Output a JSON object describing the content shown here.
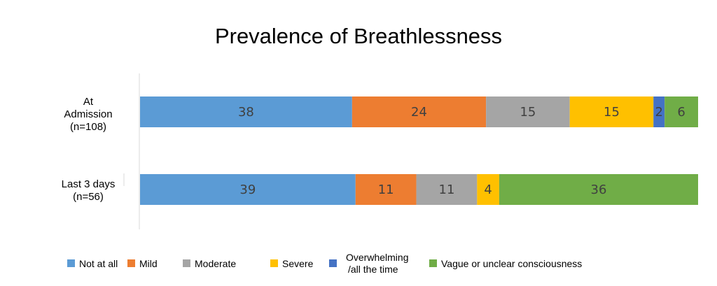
{
  "chart_data": {
    "type": "bar",
    "orientation": "horizontal",
    "stacked": true,
    "normalized": true,
    "title": "Prevalence of Breathlessness",
    "categories": [
      {
        "lines": [
          "At",
          "Admission",
          "(n=108)"
        ]
      },
      {
        "lines": [
          "Last 3 days",
          "(n=56)"
        ]
      }
    ],
    "series": [
      {
        "name": "Not at all",
        "color": "#5B9BD5",
        "values": [
          38,
          39
        ]
      },
      {
        "name": "Mild",
        "color": "#ED7D31",
        "values": [
          24,
          11
        ]
      },
      {
        "name": "Moderate",
        "color": "#A5A5A5",
        "values": [
          15,
          11
        ]
      },
      {
        "name": "Severe",
        "color": "#FFC000",
        "values": [
          15,
          4
        ]
      },
      {
        "name": "Overwhelming /all the time",
        "legend_lines": [
          "Overwhelming",
          "/all the time"
        ],
        "color": "#4472C4",
        "values": [
          2,
          0
        ]
      },
      {
        "name": "Vague or unclear consciousness",
        "color": "#70AD47",
        "values": [
          6,
          36
        ]
      }
    ],
    "grid": false,
    "legend_position": "bottom"
  }
}
